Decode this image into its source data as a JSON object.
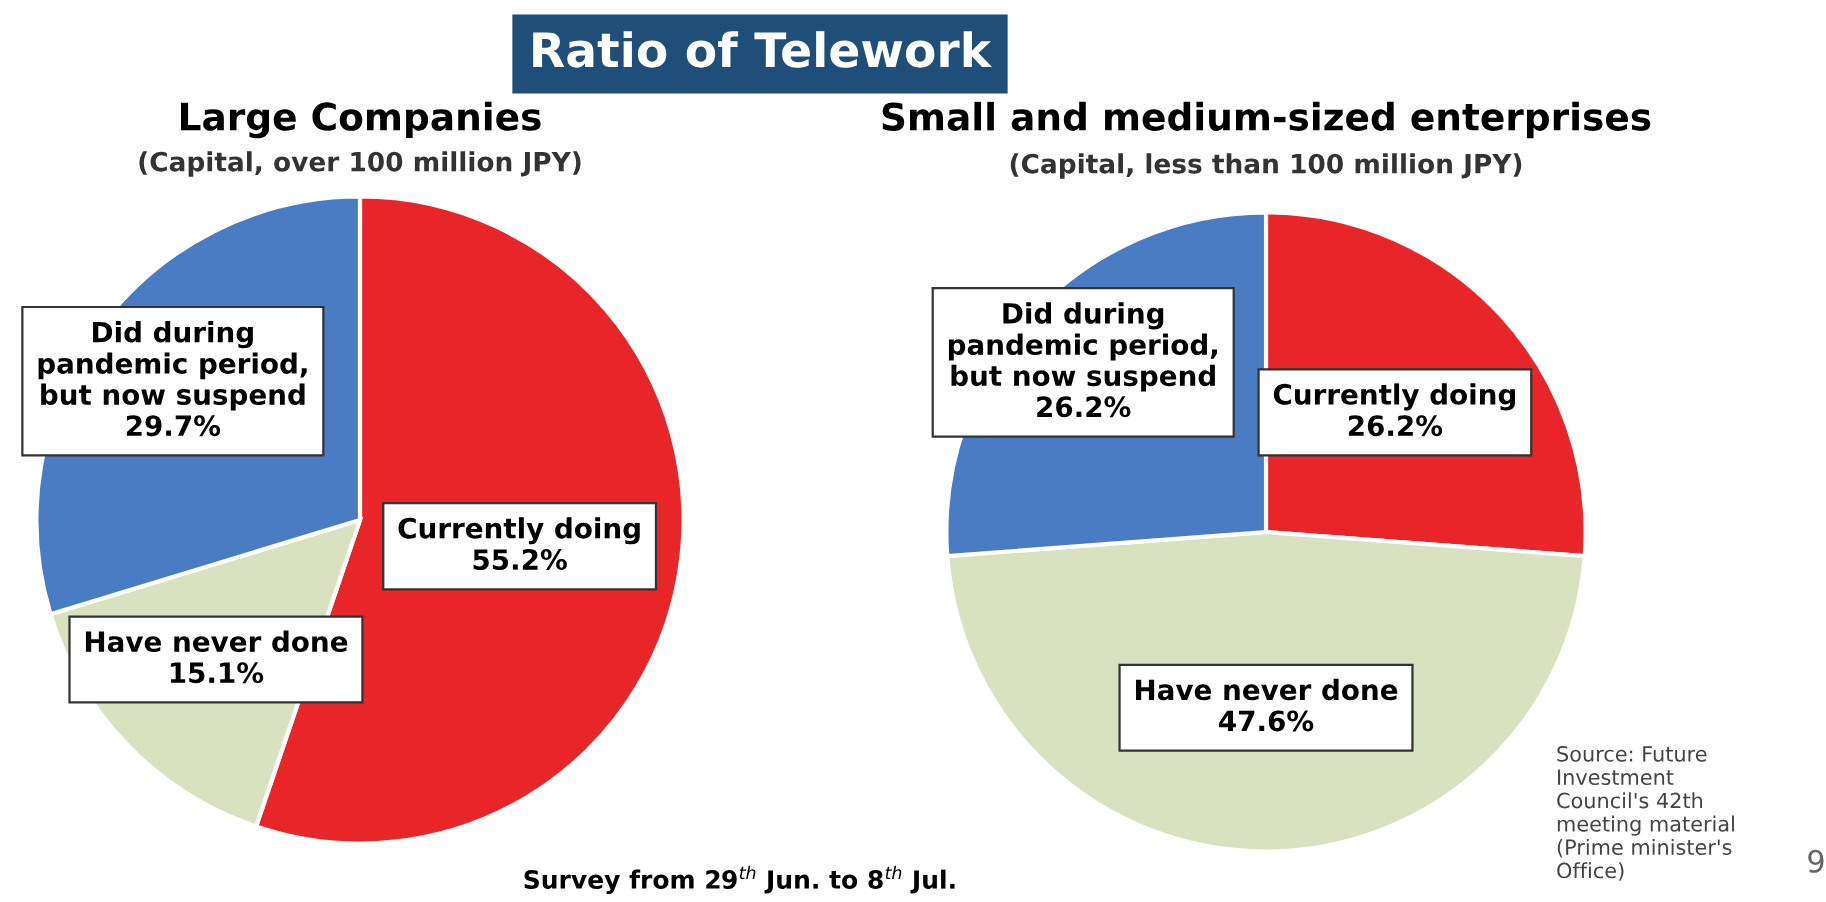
{
  "chart_data": [
    {
      "type": "pie",
      "title": "Large Companies",
      "subtitle": "(Capital, over 100 million JPY)",
      "categories": [
        "Currently doing",
        "Have never done",
        "Did during\npandemic period,\nbut now suspend"
      ],
      "values": [
        55.2,
        15.1,
        29.7
      ],
      "value_labels": [
        "55.2%",
        "15.1%",
        "29.7%"
      ],
      "colors": [
        "#e8262a",
        "#d8e2c0",
        "#4a7cc4"
      ],
      "annotations": [
        "Ratio of Telework",
        "Survey from 29$^{th}$ Jun. to 8$^{th}$ Jul."
      ]
    },
    {
      "type": "pie",
      "title": "Small and medium-sized enterprises",
      "subtitle": "(Capital, less than 100 million JPY)",
      "categories": [
        "Currently doing",
        "Have never done",
        "Did during\npandemic period,\nbut now suspend"
      ],
      "values": [
        26.2,
        47.6,
        26.2
      ],
      "value_labels": [
        "26.2%",
        "47.6%",
        "26.2%"
      ],
      "colors": [
        "#e8262a",
        "#d8e2c0",
        "#4a7cc4"
      ],
      "annotations": [
        "Source: Future\nInvestment\nCouncil's 42th\nmeeting material\n(Prime minister's\nOffice)",
        "9"
      ]
    }
  ]
}
